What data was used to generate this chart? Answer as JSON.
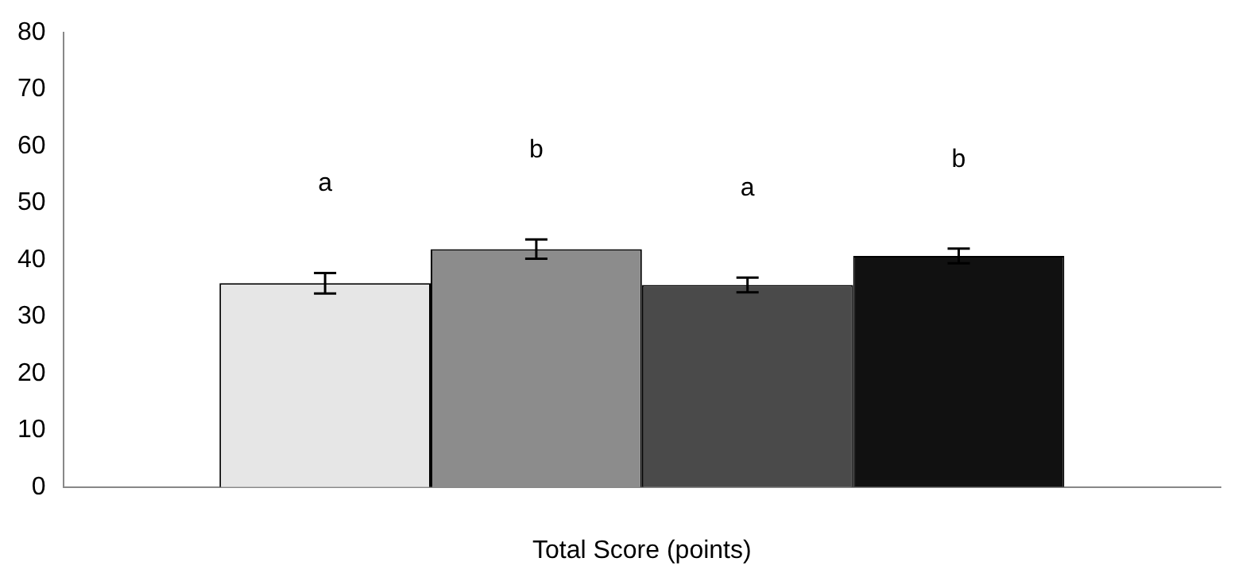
{
  "chart_data": {
    "type": "bar",
    "xlabel": "Total Score (points)",
    "categories": [
      null
    ],
    "series": [
      {
        "color": "#e6e6e6",
        "values": [
          35.9
        ],
        "errors": [
          1.8
        ]
      },
      {
        "color": "#8c8c8c",
        "values": [
          41.9
        ],
        "errors": [
          1.7
        ]
      },
      {
        "color": "#4a4a4a",
        "values": [
          35.6
        ],
        "errors": [
          1.3
        ]
      },
      {
        "color": "#111111",
        "values": [
          40.7
        ],
        "errors": [
          1.3
        ]
      }
    ],
    "annotations": [
      "a",
      "b",
      "a",
      "b"
    ],
    "ylim": [
      0,
      80
    ],
    "yticks": [
      0,
      10,
      20,
      30,
      40,
      50,
      60,
      70,
      80
    ],
    "grid": false,
    "legend": false
  }
}
